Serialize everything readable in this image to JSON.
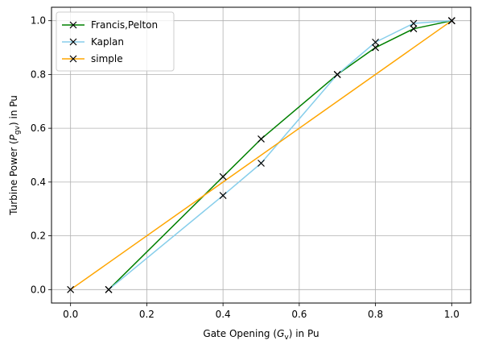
{
  "colors": {
    "background": "#ffffff",
    "grid": "#b0b0b0",
    "axes": "#000000",
    "marker": "#000000"
  },
  "chart_data": {
    "type": "line",
    "title": "",
    "xlabel": "Gate Opening (G_v) in Pu",
    "ylabel": "Turbine Power (P_gv) in Pu",
    "xlabel_parts": {
      "pre": "Gate Opening (",
      "var": "G",
      "sub": "v",
      "post": ") in Pu"
    },
    "ylabel_parts": {
      "pre": "Turbine Power (",
      "var": "P",
      "sub": "gv",
      "post": ") in Pu"
    },
    "xlim": [
      -0.05,
      1.05
    ],
    "ylim": [
      -0.05,
      1.05
    ],
    "xticks": [
      0.0,
      0.2,
      0.4,
      0.6,
      0.8,
      1.0
    ],
    "yticks": [
      0.0,
      0.2,
      0.4,
      0.6,
      0.8,
      1.0
    ],
    "xtick_labels": [
      "0.0",
      "0.2",
      "0.4",
      "0.6",
      "0.8",
      "1.0"
    ],
    "ytick_labels": [
      "0.0",
      "0.2",
      "0.4",
      "0.6",
      "0.8",
      "1.0"
    ],
    "grid": true,
    "legend_position": "top-left",
    "marker": "x",
    "series": [
      {
        "name": "Francis,Pelton",
        "color": "#008000",
        "x": [
          0.1,
          0.4,
          0.5,
          0.7,
          0.8,
          0.9,
          1.0
        ],
        "y": [
          0.0,
          0.42,
          0.56,
          0.8,
          0.9,
          0.97,
          1.0
        ]
      },
      {
        "name": "Kaplan",
        "color": "#87ceeb",
        "x": [
          0.1,
          0.4,
          0.5,
          0.7,
          0.8,
          0.9,
          1.0
        ],
        "y": [
          0.0,
          0.35,
          0.47,
          0.8,
          0.92,
          0.99,
          1.0
        ]
      },
      {
        "name": "simple",
        "color": "#ffa500",
        "x": [
          0.0,
          1.0
        ],
        "y": [
          0.0,
          1.0
        ]
      }
    ]
  }
}
